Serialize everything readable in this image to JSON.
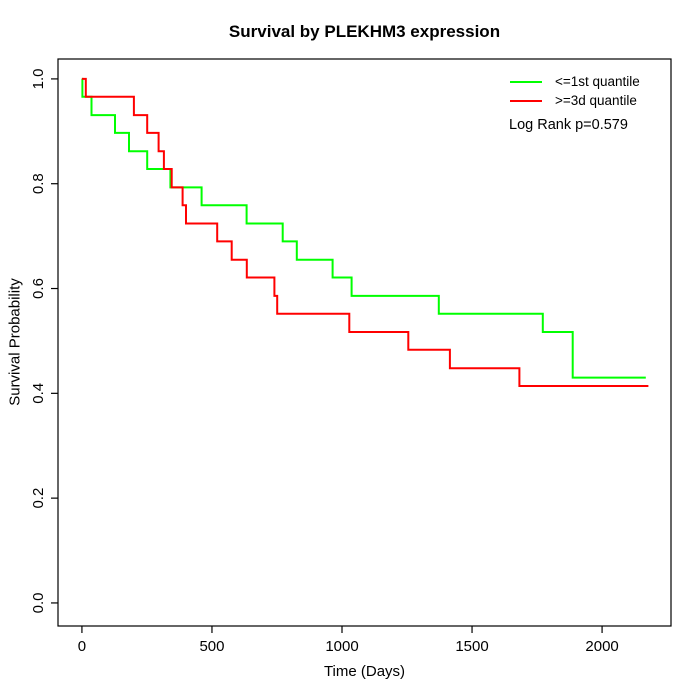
{
  "chart_data": {
    "type": "line",
    "subtype": "kaplan-meier-step",
    "title": "Survival by PLEKHM3 expression",
    "xlabel": "Time (Days)",
    "ylabel": "Survival Probability",
    "annotation": "Log Rank p=0.579",
    "grid": false,
    "legend_position": "top-right",
    "xlim": [
      -92,
      2265
    ],
    "ylim": [
      -0.044,
      1.038
    ],
    "xticks": [
      0,
      500,
      1000,
      1500,
      2000
    ],
    "yticks": [
      0.0,
      0.2,
      0.4,
      0.6,
      0.8,
      1.0
    ],
    "axis_color": "#000000",
    "series": [
      {
        "name": "<=1st quantile",
        "color": "#00FF00",
        "end_time": 2168,
        "points": [
          [
            0,
            1.0
          ],
          [
            2,
            0.966
          ],
          [
            37,
            0.931
          ],
          [
            127,
            0.897
          ],
          [
            181,
            0.862
          ],
          [
            251,
            0.828
          ],
          [
            340,
            0.793
          ],
          [
            460,
            0.759
          ],
          [
            633,
            0.724
          ],
          [
            772,
            0.69
          ],
          [
            826,
            0.655
          ],
          [
            964,
            0.621
          ],
          [
            1037,
            0.586
          ],
          [
            1372,
            0.552
          ],
          [
            1772,
            0.517
          ],
          [
            1887,
            0.43
          ]
        ]
      },
      {
        "name": ">=3d quantile",
        "color": "#FF0000",
        "end_time": 2178,
        "points": [
          [
            0,
            1.0
          ],
          [
            15,
            0.966
          ],
          [
            200,
            0.931
          ],
          [
            251,
            0.897
          ],
          [
            295,
            0.862
          ],
          [
            315,
            0.828
          ],
          [
            345,
            0.793
          ],
          [
            387,
            0.759
          ],
          [
            400,
            0.724
          ],
          [
            520,
            0.69
          ],
          [
            576,
            0.655
          ],
          [
            634,
            0.621
          ],
          [
            740,
            0.586
          ],
          [
            751,
            0.552
          ],
          [
            1028,
            0.517
          ],
          [
            1255,
            0.483
          ],
          [
            1415,
            0.448
          ],
          [
            1682,
            0.414
          ]
        ]
      }
    ]
  }
}
